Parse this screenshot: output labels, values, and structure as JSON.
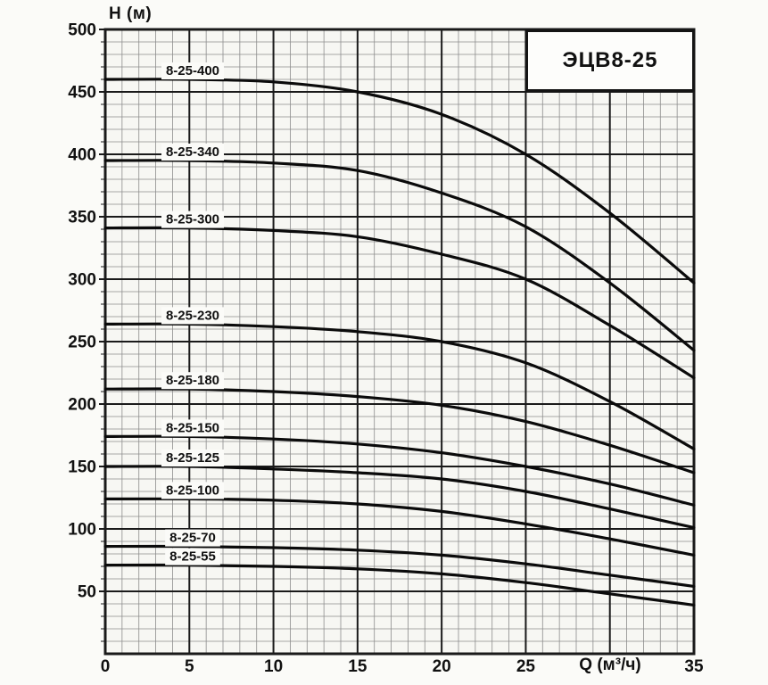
{
  "page": {
    "background": "#fbfbf8"
  },
  "chart_data": {
    "type": "line",
    "title": "ЭЦВ8-25",
    "ylabel": "H (м)",
    "xlabel": "Q (м³/ч)",
    "xlim": [
      0,
      35
    ],
    "ylim": [
      0,
      500
    ],
    "x_ticks": [
      0,
      5,
      10,
      15,
      20,
      25,
      35
    ],
    "xlabel_at_x": 30,
    "y_ticks": [
      50,
      100,
      150,
      200,
      250,
      300,
      350,
      400,
      450,
      500
    ],
    "x_minor_step": 1,
    "y_minor_step": 10,
    "grid": "major+minor",
    "legend": "inline curve labels above each curve",
    "x": [
      0,
      5,
      10,
      15,
      20,
      25,
      30,
      35
    ],
    "series": [
      {
        "name": "8-25-400",
        "values": [
          460,
          460,
          458,
          450,
          432,
          400,
          353,
          297
        ]
      },
      {
        "name": "8-25-340",
        "values": [
          395,
          395,
          393,
          387,
          369,
          342,
          297,
          243
        ]
      },
      {
        "name": "8-25-300",
        "values": [
          341,
          341,
          339,
          334,
          320,
          300,
          263,
          221
        ]
      },
      {
        "name": "8-25-230",
        "values": [
          264,
          264,
          262,
          258,
          250,
          233,
          202,
          164
        ]
      },
      {
        "name": "8-25-180",
        "values": [
          212,
          212,
          210,
          206,
          199,
          186,
          167,
          145
        ]
      },
      {
        "name": "8-25-150",
        "values": [
          174,
          174,
          172,
          168,
          161,
          150,
          136,
          119
        ]
      },
      {
        "name": "8-25-125",
        "values": [
          150,
          150,
          148,
          145,
          140,
          130,
          116,
          101
        ]
      },
      {
        "name": "8-25-100",
        "values": [
          124,
          124,
          123,
          120,
          114,
          104,
          92,
          79
        ]
      },
      {
        "name": "8-25-70",
        "values": [
          86,
          86,
          85,
          83,
          79,
          72,
          63,
          54
        ]
      },
      {
        "name": "8-25-55",
        "values": [
          71,
          71,
          70,
          68,
          64,
          57,
          48,
          39
        ]
      }
    ],
    "colors": {
      "curve": "#0b0b0b",
      "grid_major": "#1a1a1a",
      "grid_minor": "#8c8c8c",
      "text": "#111111",
      "plot_background": "#f7f7f3",
      "label_patch": "#fbfbf8"
    }
  }
}
